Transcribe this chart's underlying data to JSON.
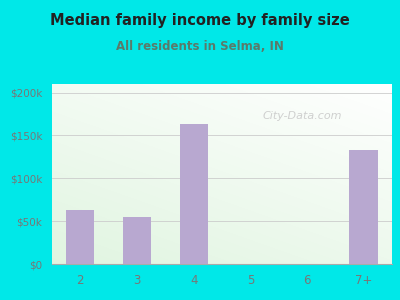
{
  "title": "Median family income by family size",
  "subtitle": "All residents in Selma, IN",
  "categories": [
    "2",
    "3",
    "4",
    "5",
    "6",
    "7+"
  ],
  "values": [
    63000,
    55000,
    163000,
    0,
    0,
    133000
  ],
  "bar_color": "#b8a8d0",
  "title_color": "#222222",
  "subtitle_color": "#5a7a6a",
  "outer_bg": "#00e8e8",
  "plot_bg_top": "#f0f8ee",
  "plot_bg_bottom": "#e8f5e0",
  "yticks": [
    0,
    50000,
    100000,
    150000,
    200000
  ],
  "ytick_labels": [
    "$0",
    "$50k",
    "$100k",
    "$150k",
    "$200k"
  ],
  "ylim": [
    0,
    210000
  ],
  "watermark": "City-Data.com",
  "watermark_color": "#c8c8c8",
  "tick_color": "#777777",
  "grid_color": "#cccccc",
  "spine_color": "#aaaaaa"
}
